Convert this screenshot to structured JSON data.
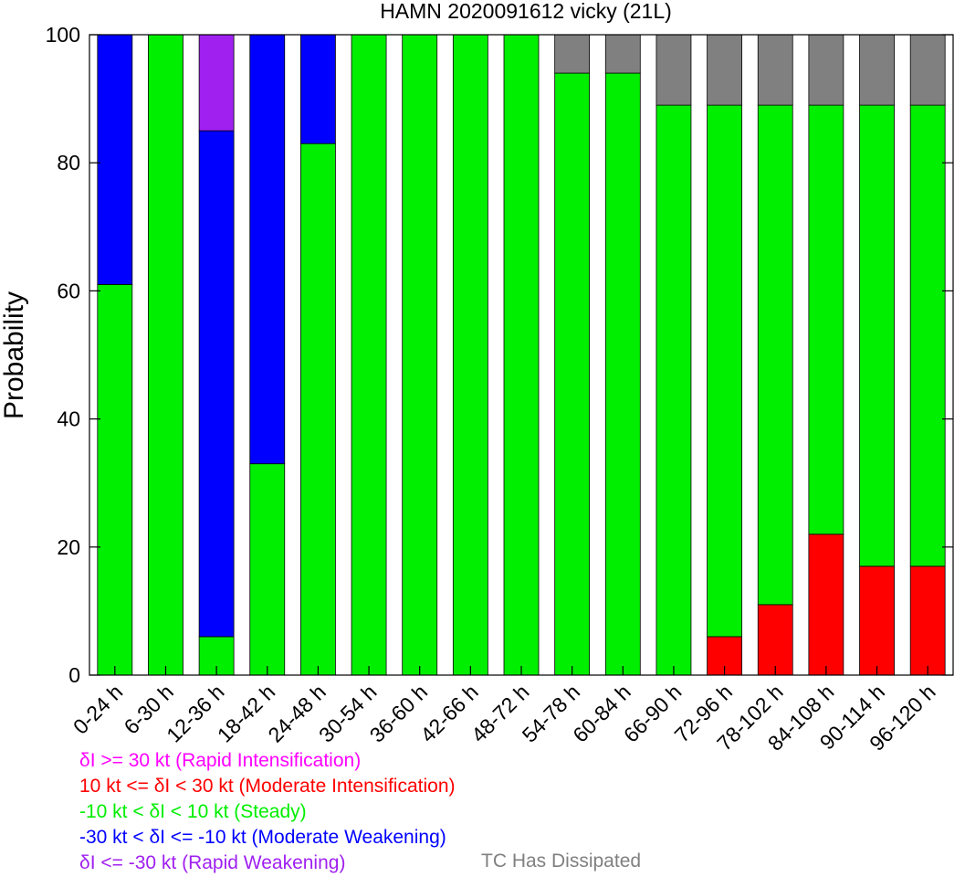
{
  "chart_data": {
    "type": "bar",
    "stacked": true,
    "title": "HAMN 2020091612 vicky (21L)",
    "ylabel": "Probability",
    "xlabel": "",
    "ylim": [
      0,
      100
    ],
    "yticks": [
      0,
      20,
      40,
      60,
      80,
      100
    ],
    "categories": [
      "0-24 h",
      "6-30 h",
      "12-36 h",
      "18-42 h",
      "24-48 h",
      "30-54 h",
      "36-60 h",
      "42-66 h",
      "48-72 h",
      "54-78 h",
      "60-84 h",
      "66-90 h",
      "72-96 h",
      "78-102 h",
      "84-108 h",
      "90-114 h",
      "96-120 h"
    ],
    "series": [
      {
        "name": "10 kt <= δI < 30 kt (Moderate Intensification)",
        "color": "#ff0000",
        "values": [
          0,
          0,
          0,
          0,
          0,
          0,
          0,
          0,
          0,
          0,
          0,
          0,
          6,
          11,
          22,
          17,
          17
        ]
      },
      {
        "name": "-10 kt < δI < 10 kt (Steady)",
        "color": "#00ee00",
        "values": [
          61,
          100,
          6,
          33,
          83,
          100,
          100,
          100,
          100,
          94,
          94,
          89,
          83,
          78,
          67,
          72,
          72
        ]
      },
      {
        "name": "-30 kt < δI <= -10 kt (Moderate Weakening)",
        "color": "#0000ff",
        "values": [
          39,
          0,
          79,
          67,
          17,
          0,
          0,
          0,
          0,
          0,
          0,
          0,
          0,
          0,
          0,
          0,
          0
        ]
      },
      {
        "name": "δI <= -30 kt (Rapid Weakening)",
        "color": "#a020f0",
        "values": [
          0,
          0,
          15,
          0,
          0,
          0,
          0,
          0,
          0,
          0,
          0,
          0,
          0,
          0,
          0,
          0,
          0
        ]
      },
      {
        "name": "TC Has Dissipated",
        "color": "#808080",
        "values": [
          0,
          0,
          0,
          0,
          0,
          0,
          0,
          0,
          0,
          6,
          6,
          11,
          11,
          11,
          11,
          11,
          11
        ]
      }
    ],
    "legend": [
      {
        "text": "δI >= 30 kt (Rapid Intensification)",
        "color": "#ff00ff"
      },
      {
        "text": "10 kt <= δI < 30 kt (Moderate Intensification)",
        "color": "#ff0000"
      },
      {
        "text": "-10 kt < δI < 10 kt (Steady)",
        "color": "#00ee00"
      },
      {
        "text": "-30 kt < δI <= -10 kt (Moderate Weakening)",
        "color": "#0000ff"
      },
      {
        "text": "δI <= -30 kt (Rapid Weakening)",
        "color": "#a020f0"
      },
      {
        "text": "TC Has Dissipated",
        "color": "#808080"
      }
    ],
    "grid": false,
    "legend_placement": "bottom"
  }
}
